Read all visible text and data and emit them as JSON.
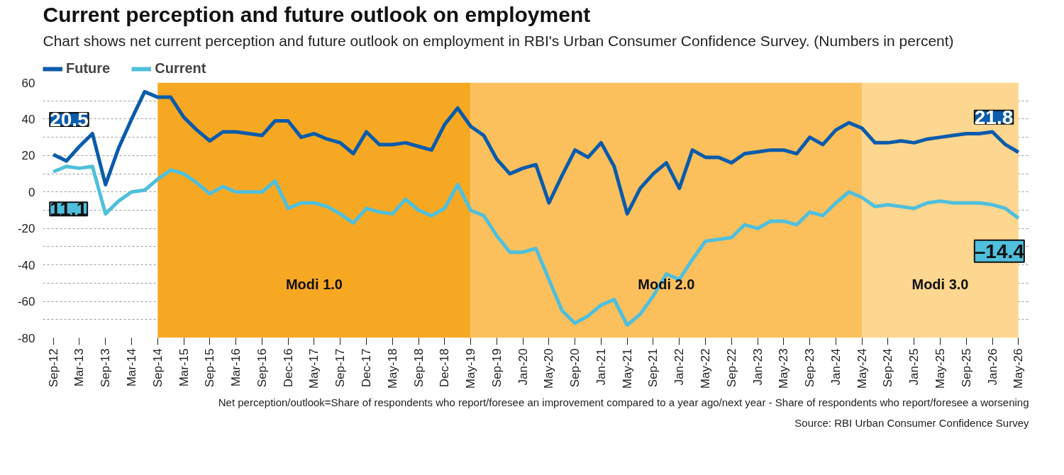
{
  "chart_data": {
    "type": "line",
    "title": "Current perception and future outlook on employment",
    "subtitle": "Chart shows net current perception and future outlook on employment in RBI's Urban Consumer Confidence Survey. (Numbers in percent)",
    "categories": [
      "Sep-12",
      null,
      "Mar-13",
      null,
      "Sep-13",
      null,
      "Mar-14",
      null,
      "Sep-14",
      null,
      "Mar-15",
      null,
      "Sep-15",
      null,
      "Mar-16",
      null,
      "Sep-16",
      null,
      "Dec-16",
      null,
      "May-17",
      null,
      "Sep-17",
      null,
      "Dec-17",
      null,
      "May-18",
      null,
      "Sep-18",
      null,
      "Dec-18",
      null,
      "May-19",
      null,
      "Sep-19",
      null,
      "Jan-20",
      null,
      "May-20",
      null,
      "Sep-20",
      null,
      "Jan-21",
      null,
      "May-21",
      null,
      "Sep-21",
      null,
      "Jan-22",
      null,
      "May-22",
      null,
      "Sep-22",
      null,
      "Jan-23",
      null,
      "May-23",
      null,
      "Sep-23",
      null,
      "Jan-24",
      null,
      "May-24",
      null,
      "Sep-24",
      null,
      "Jan-25",
      null,
      "May-25",
      null,
      "Sep-25",
      null,
      "Jan-26",
      null,
      "May-26"
    ],
    "series": [
      {
        "name": "Future",
        "color": "#0a5bab",
        "values": [
          20.5,
          17,
          25,
          32,
          4,
          24,
          40,
          55,
          52,
          52,
          41,
          34,
          28,
          33,
          33,
          32,
          31,
          39,
          39,
          30,
          32,
          29,
          27,
          21,
          33,
          26,
          26,
          27,
          25,
          23,
          37,
          46,
          36,
          31,
          18,
          10,
          13,
          15,
          -6,
          9,
          23,
          19,
          27,
          14,
          -12,
          2,
          10,
          16,
          2,
          23,
          19,
          19,
          16,
          21,
          22,
          23,
          23,
          21,
          30,
          26,
          34,
          38,
          35,
          27,
          27,
          28,
          27,
          29,
          30,
          31,
          32,
          32,
          33,
          26,
          21.8
        ]
      },
      {
        "name": "Current",
        "color": "#4fbfdc",
        "values": [
          11.1,
          14,
          13,
          14,
          -12,
          -5,
          0,
          1,
          7,
          12,
          10,
          5,
          -1,
          3,
          0,
          0,
          0,
          6,
          -9,
          -6,
          -6,
          -8,
          -12,
          -17,
          -9,
          -11,
          -12,
          -4,
          -10,
          -13,
          -9,
          4,
          -10,
          -13,
          -24,
          -33,
          -33,
          -31,
          -48,
          -65,
          -72,
          -68,
          -62,
          -59,
          -73,
          -67,
          -57,
          -45,
          -48,
          -37,
          -27,
          -26,
          -25,
          -18,
          -20,
          -16,
          -16,
          -18,
          -11,
          -13,
          -6,
          0,
          -3,
          -8,
          -7,
          -8,
          -9,
          -6,
          -5,
          -6,
          -6,
          -6,
          -7,
          -9,
          -14.4
        ]
      }
    ],
    "ylim": [
      -80,
      60
    ],
    "yticks": [
      -80,
      {
        "value": -70,
        "label": null
      },
      -60,
      {
        "value": -50,
        "label": null
      },
      -40,
      {
        "value": -30,
        "label": null
      },
      -20,
      {
        "value": -10,
        "label": null
      },
      0,
      {
        "value": 10,
        "label": null
      },
      20,
      {
        "value": 30,
        "label": null
      },
      40,
      {
        "value": 50,
        "label": null
      },
      60
    ],
    "bands": [
      {
        "axis": "x",
        "from": "Sep-14",
        "to": "May-19",
        "label": "Modi 1.0",
        "color": "#f7a823"
      },
      {
        "axis": "x",
        "from": "May-19",
        "to": "May-24",
        "label": "Modi 2.0",
        "color": "#fbc05c"
      },
      {
        "axis": "x",
        "from": "May-24",
        "to": "May-26",
        "label": "Modi 3.0",
        "color": "#fdd68f"
      }
    ],
    "annotations": [
      {
        "text": "20.5",
        "x": "Sep-12",
        "y": 20.5
      },
      {
        "text": "11.1",
        "x": "Sep-12",
        "y": 11.1
      },
      {
        "text": "21.8",
        "x": "May-26",
        "y": 21.8
      },
      {
        "text": "–14.4",
        "x": "May-26",
        "y": -14.4
      },
      "Net perception/outlook=Share of respondents who report/foresee an improvement compared to a year ago/next year - Share of respondents who report/foresee a worsening",
      "Source: RBI Urban Consumer Confidence Survey"
    ],
    "grid": "y",
    "legend": "top left",
    "line_style": "solid",
    "marker": "none"
  }
}
